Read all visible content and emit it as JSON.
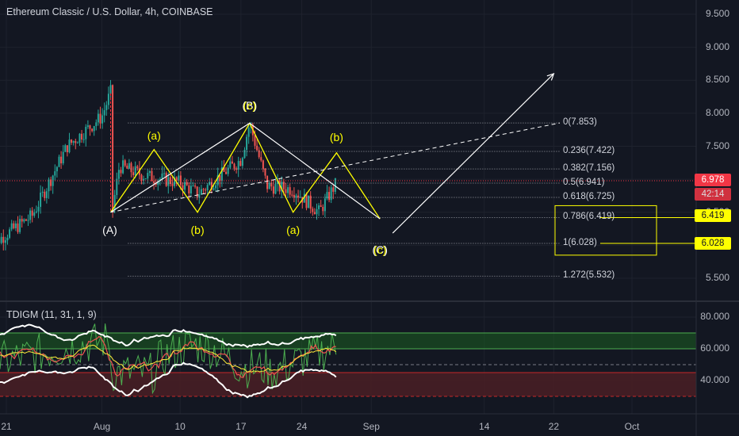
{
  "header": {
    "title": "Ethereum Classic / U.S. Dollar, 4h, COINBASE"
  },
  "indicator": {
    "title": "TDIGM (11, 31, 1, 9)"
  },
  "price_axis": {
    "ticks": [
      "9.500",
      "9.000",
      "8.500",
      "8.000",
      "7.500",
      "7.000",
      "6.500",
      "6.000",
      "5.500"
    ],
    "last_price_tag": "6.978",
    "countdown_tag": "42:14",
    "fib_tag_1": "6.419",
    "fib_tag_2": "6.028"
  },
  "indicator_axis": {
    "ticks": [
      "80.000",
      "60.000",
      "40.000"
    ]
  },
  "time_axis": {
    "ticks": [
      "21",
      "Aug",
      "10",
      "17",
      "24",
      "Sep",
      "14",
      "22",
      "Oct"
    ]
  },
  "fib_levels": [
    {
      "label": "0(7.853)",
      "ratio": 0,
      "price": 7.853
    },
    {
      "label": "0.236(7.422)",
      "ratio": 0.236,
      "price": 7.422
    },
    {
      "label": "0.382(7.156)",
      "ratio": 0.382,
      "price": 7.156
    },
    {
      "label": "0.5(6.941)",
      "ratio": 0.5,
      "price": 6.941
    },
    {
      "label": "0.618(6.725)",
      "ratio": 0.618,
      "price": 6.725
    },
    {
      "label": "0.786(6.419)",
      "ratio": 0.786,
      "price": 6.419
    },
    {
      "label": "1(6.028)",
      "ratio": 1,
      "price": 6.028
    },
    {
      "label": "1.272(5.532)",
      "ratio": 1.272,
      "price": 5.532
    }
  ],
  "wave_labels": {
    "A": "(A)",
    "B": "(B)",
    "B_overlay": "(c)",
    "C": "(C)",
    "C_overlay": "(c)",
    "a1": "(a)",
    "b1": "(b)",
    "a2": "(a)",
    "b2": "(b)"
  },
  "colors": {
    "background": "#131722",
    "up": "#26a69a",
    "down": "#ef5350",
    "wave_yellow": "#ffff00",
    "white": "#ffffff",
    "last_price": "#f23645",
    "ind_green_zone": "#1b5e20",
    "ind_red_zone": "#4a1f24"
  },
  "chart_data": {
    "type": "candlestick",
    "symbol": "Ethereum Classic / U.S. Dollar",
    "interval": "4h",
    "exchange": "COINBASE",
    "price_range": [
      5.0,
      9.75
    ],
    "last_price": 6.978,
    "price_path": [
      {
        "date": "Jul 19",
        "price": 5.98
      },
      {
        "date": "Jul 24",
        "price": 6.45
      },
      {
        "date": "Jul 28",
        "price": 7.5
      },
      {
        "date": "Aug 1",
        "price": 7.95
      },
      {
        "date": "Aug 2",
        "price": 8.32
      },
      {
        "date": "Aug 2",
        "price": 6.5
      },
      {
        "date": "Aug 3",
        "price": 7.2
      },
      {
        "date": "Aug 6",
        "price": 7.05
      },
      {
        "date": "Aug 10",
        "price": 6.95
      },
      {
        "date": "Aug 12",
        "price": 6.78
      },
      {
        "date": "Aug 17",
        "price": 7.3
      },
      {
        "date": "Aug 18",
        "price": 7.85
      },
      {
        "date": "Aug 20",
        "price": 6.9
      },
      {
        "date": "Aug 23",
        "price": 6.85
      },
      {
        "date": "Aug 26",
        "price": 6.5
      },
      {
        "date": "Aug 28",
        "price": 6.95
      }
    ],
    "elliott_waves": {
      "main": [
        {
          "label": "(A)",
          "date": "Aug 2",
          "price": 6.5
        },
        {
          "label": "(B)",
          "date": "Aug 18",
          "price": 7.85
        },
        {
          "label": "(C)",
          "date": "Sep 2",
          "price": 6.4
        }
      ],
      "sub_waves": [
        {
          "label": "(a)",
          "date": "Aug 7",
          "price": 7.45
        },
        {
          "label": "(b)",
          "date": "Aug 12",
          "price": 6.5
        },
        {
          "label": "(a)",
          "date": "Aug 23",
          "price": 6.5
        },
        {
          "label": "(b)",
          "date": "Aug 28",
          "price": 7.4
        }
      ],
      "projection_target": {
        "date": "Sep 22",
        "price": 8.6
      }
    },
    "fibonacci": {
      "high": 7.853,
      "low": 6.028
    },
    "indicator": {
      "name": "TDIGM",
      "params": [
        11,
        31,
        1,
        9
      ],
      "range": [
        25,
        90
      ],
      "upper_zone": [
        60,
        70
      ],
      "lower_zone": [
        30,
        45
      ],
      "mid_level": 50
    }
  }
}
